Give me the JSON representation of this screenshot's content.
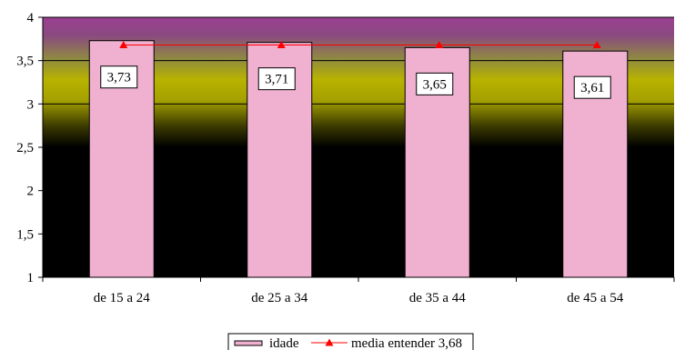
{
  "chart_data": {
    "type": "bar",
    "categories": [
      "de 15 a 24",
      "de 25 a 34",
      "de 35 a 44",
      "de 45 a 54"
    ],
    "series": [
      {
        "name": "idade",
        "type": "bar",
        "values": [
          3.73,
          3.71,
          3.65,
          3.61
        ],
        "color": "#f0b0d0"
      },
      {
        "name": "media entender 3,68",
        "type": "line",
        "values": [
          3.68,
          3.68,
          3.68,
          3.68
        ],
        "color": "#ff0000"
      }
    ],
    "data_labels": [
      "3,73",
      "3,71",
      "3,65",
      "3,61"
    ],
    "yticks": [
      {
        "value": 1,
        "label": "1"
      },
      {
        "value": 1.5,
        "label": "1,5"
      },
      {
        "value": 2,
        "label": "2"
      },
      {
        "value": 2.5,
        "label": "2,5"
      },
      {
        "value": 3,
        "label": "3"
      },
      {
        "value": 3.5,
        "label": "3,5"
      },
      {
        "value": 4,
        "label": "4"
      }
    ],
    "ylim": [
      1,
      4
    ],
    "grid": true,
    "legend_position": "bottom",
    "background": "gradient purple-yellow-black"
  }
}
